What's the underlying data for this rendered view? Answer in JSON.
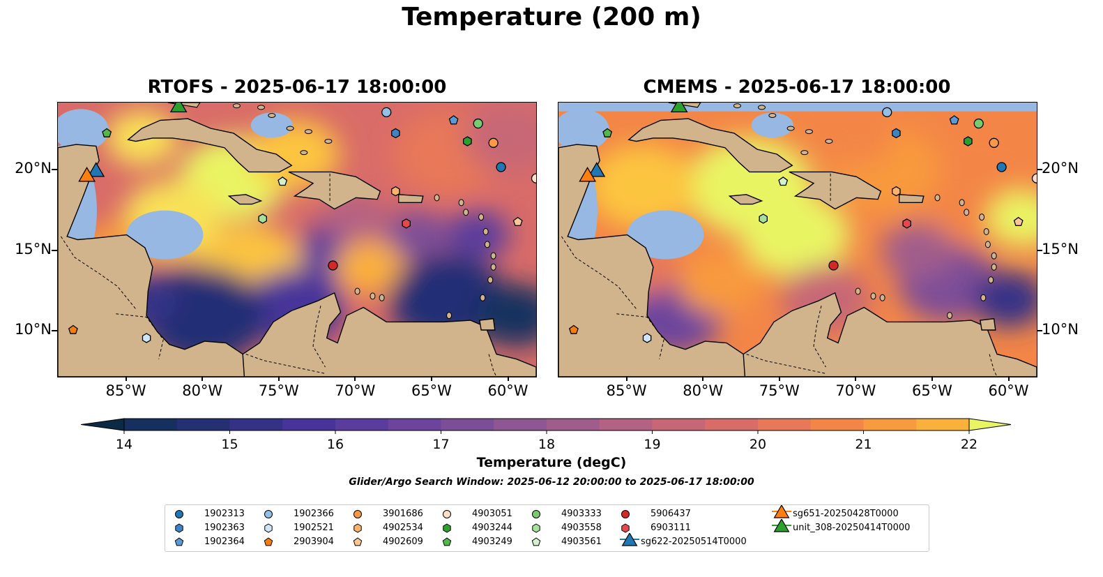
{
  "figure": {
    "title": "Temperature (200 m)",
    "search_window_note": "Glider/Argo Search Window: 2025-06-12 20:00:00 to 2025-06-17 18:00:00"
  },
  "panels": [
    {
      "title": "RTOFS - 2025-06-17 18:00:00"
    },
    {
      "title": "CMEMS - 2025-06-17 18:00:00"
    }
  ],
  "axes": {
    "longitude_ticks": [
      "85°W",
      "80°W",
      "75°W",
      "70°W",
      "65°W",
      "60°W"
    ],
    "latitude_ticks": [
      "20°N",
      "15°N",
      "10°N"
    ],
    "extent": {
      "lon": [
        -89.5,
        -58.2
      ],
      "lat": [
        7.2,
        24.2
      ]
    }
  },
  "colorbar": {
    "label": "Temperature (degC)",
    "min": 14,
    "max": 22,
    "step": 0.5,
    "extend": "both",
    "tick_labels": [
      "14",
      "15",
      "16",
      "17",
      "18",
      "19",
      "20",
      "21",
      "22"
    ],
    "colors": [
      "#0b2a45",
      "#15305e",
      "#242f74",
      "#353187",
      "#47349a",
      "#5a3c9e",
      "#6c449d",
      "#7d4e98",
      "#8e5693",
      "#a05d8c",
      "#b46283",
      "#c76776",
      "#d96c68",
      "#e87858",
      "#f38647",
      "#f89a3e",
      "#fbb03c",
      "#fcc53f",
      "#f8e156",
      "#e9f463"
    ]
  },
  "map_colors": {
    "land": "#d2b48c",
    "ocean_shallow": "#96b8e2",
    "ocean_deep_dark": "#08263a"
  },
  "legend": {
    "items": [
      {
        "label": "1902313",
        "marker": "circle",
        "color": "#1f77b4"
      },
      {
        "label": "1902363",
        "marker": "hexagon",
        "color": "#3d84c6"
      },
      {
        "label": "1902364",
        "marker": "pentagon",
        "color": "#5a9bd6"
      },
      {
        "label": "1902366",
        "marker": "circle",
        "color": "#93c0e6"
      },
      {
        "label": "1902521",
        "marker": "hexagon",
        "color": "#d0e6f7"
      },
      {
        "label": "2903904",
        "marker": "pentagon",
        "color": "#f57e10"
      },
      {
        "label": "3901686",
        "marker": "circle",
        "color": "#f89a45"
      },
      {
        "label": "4902534",
        "marker": "hexagon",
        "color": "#fbb26c"
      },
      {
        "label": "4902609",
        "marker": "pentagon",
        "color": "#fcc795"
      },
      {
        "label": "4903051",
        "marker": "circle",
        "color": "#fde0c5"
      },
      {
        "label": "4903244",
        "marker": "hexagon",
        "color": "#2ca02c"
      },
      {
        "label": "4903249",
        "marker": "pentagon",
        "color": "#52b84a"
      },
      {
        "label": "4903333",
        "marker": "circle",
        "color": "#78cc6d"
      },
      {
        "label": "4903558",
        "marker": "hexagon",
        "color": "#a6e09c"
      },
      {
        "label": "4903561",
        "marker": "pentagon",
        "color": "#d3f2cc"
      },
      {
        "label": "5906437",
        "marker": "circle",
        "color": "#d62728"
      },
      {
        "label": "6903111",
        "marker": "hexagon",
        "color": "#e34a4e"
      },
      {
        "label": "sg622-20250514T0000",
        "marker": "triangle",
        "color": "#1f77b4"
      },
      {
        "label": "sg651-20250428T0000",
        "marker": "triangle",
        "color": "#ff7f0e"
      },
      {
        "label": "unit_308-20250414T0000",
        "marker": "triangle",
        "color": "#2ca02c"
      }
    ]
  },
  "observations": [
    {
      "id": "1902313",
      "lon": -60.5,
      "lat": 20.2
    },
    {
      "id": "1902363",
      "lon": -67.4,
      "lat": 22.3
    },
    {
      "id": "1902364",
      "lon": -63.6,
      "lat": 23.1
    },
    {
      "id": "1902366",
      "lon": -68.0,
      "lat": 23.6
    },
    {
      "id": "1902521",
      "lon": -83.7,
      "lat": 9.6
    },
    {
      "id": "2903904",
      "lon": -88.5,
      "lat": 10.1
    },
    {
      "id": "3901686",
      "lon": -61.0,
      "lat": 21.7
    },
    {
      "id": "4902534",
      "lon": -67.4,
      "lat": 18.7
    },
    {
      "id": "4902609",
      "lon": -59.4,
      "lat": 16.8
    },
    {
      "id": "4903051",
      "lon": -58.2,
      "lat": 19.5
    },
    {
      "id": "4903244",
      "lon": -62.7,
      "lat": 21.8
    },
    {
      "id": "4903249",
      "lon": -86.3,
      "lat": 22.3
    },
    {
      "id": "4903333",
      "lon": -62.0,
      "lat": 22.9
    },
    {
      "id": "4903558",
      "lon": -76.1,
      "lat": 17.0
    },
    {
      "id": "4903561",
      "lon": -74.8,
      "lat": 19.3
    },
    {
      "id": "5906437",
      "lon": -71.5,
      "lat": 14.1
    },
    {
      "id": "6903111",
      "lon": -66.7,
      "lat": 16.7
    },
    {
      "id": "sg622-20250514T0000",
      "lon": -87.0,
      "lat": 19.9
    },
    {
      "id": "sg651-20250428T0000",
      "lon": -87.6,
      "lat": 19.6
    },
    {
      "id": "unit_308-20250414T0000",
      "lon": -81.6,
      "lat": 23.9
    }
  ]
}
